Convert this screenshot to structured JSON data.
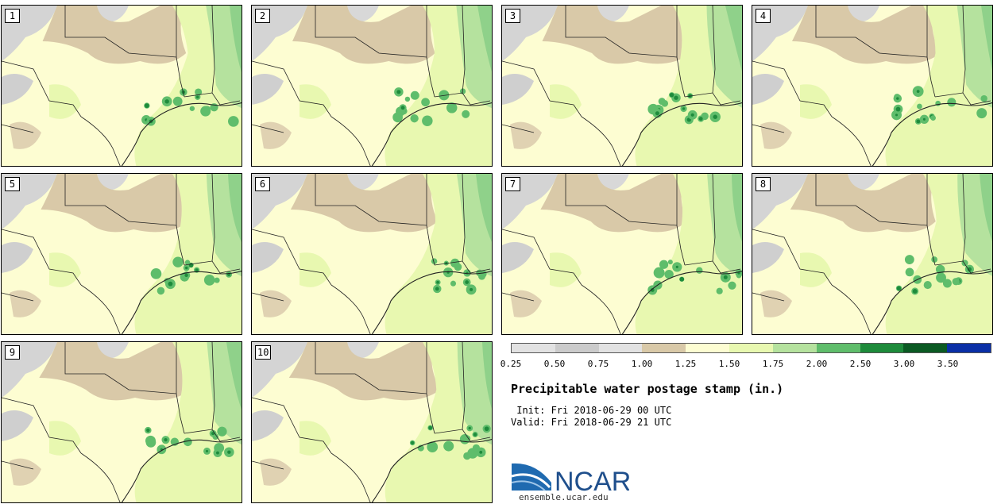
{
  "stamps": [
    {
      "label": "1"
    },
    {
      "label": "2"
    },
    {
      "label": "3"
    },
    {
      "label": "4"
    },
    {
      "label": "5"
    },
    {
      "label": "6"
    },
    {
      "label": "7"
    },
    {
      "label": "8"
    },
    {
      "label": "9"
    },
    {
      "label": "10"
    }
  ],
  "legend": {
    "colors": [
      "#e2e2e2",
      "#cbcbcb",
      "#e2e2e2",
      "#d9c9a8",
      "#fdfdd2",
      "#e8f8b0",
      "#b5e29e",
      "#5fbd6b",
      "#1e8b3b",
      "#0b5a23",
      "#0a2fa6"
    ],
    "labels": [
      "0.25",
      "0.50",
      "0.75",
      "1.00",
      "1.25",
      "1.50",
      "1.75",
      "2.00",
      "2.50",
      "3.00",
      "3.50"
    ]
  },
  "info": {
    "title": "Precipitable water postage stamp (in.)",
    "init": " Init: Fri 2018-06-29 00 UTC",
    "valid": "Valid: Fri 2018-06-29 21 UTC"
  },
  "branding": {
    "logo_text": "NCAR",
    "url": "ensemble.ucar.edu"
  }
}
